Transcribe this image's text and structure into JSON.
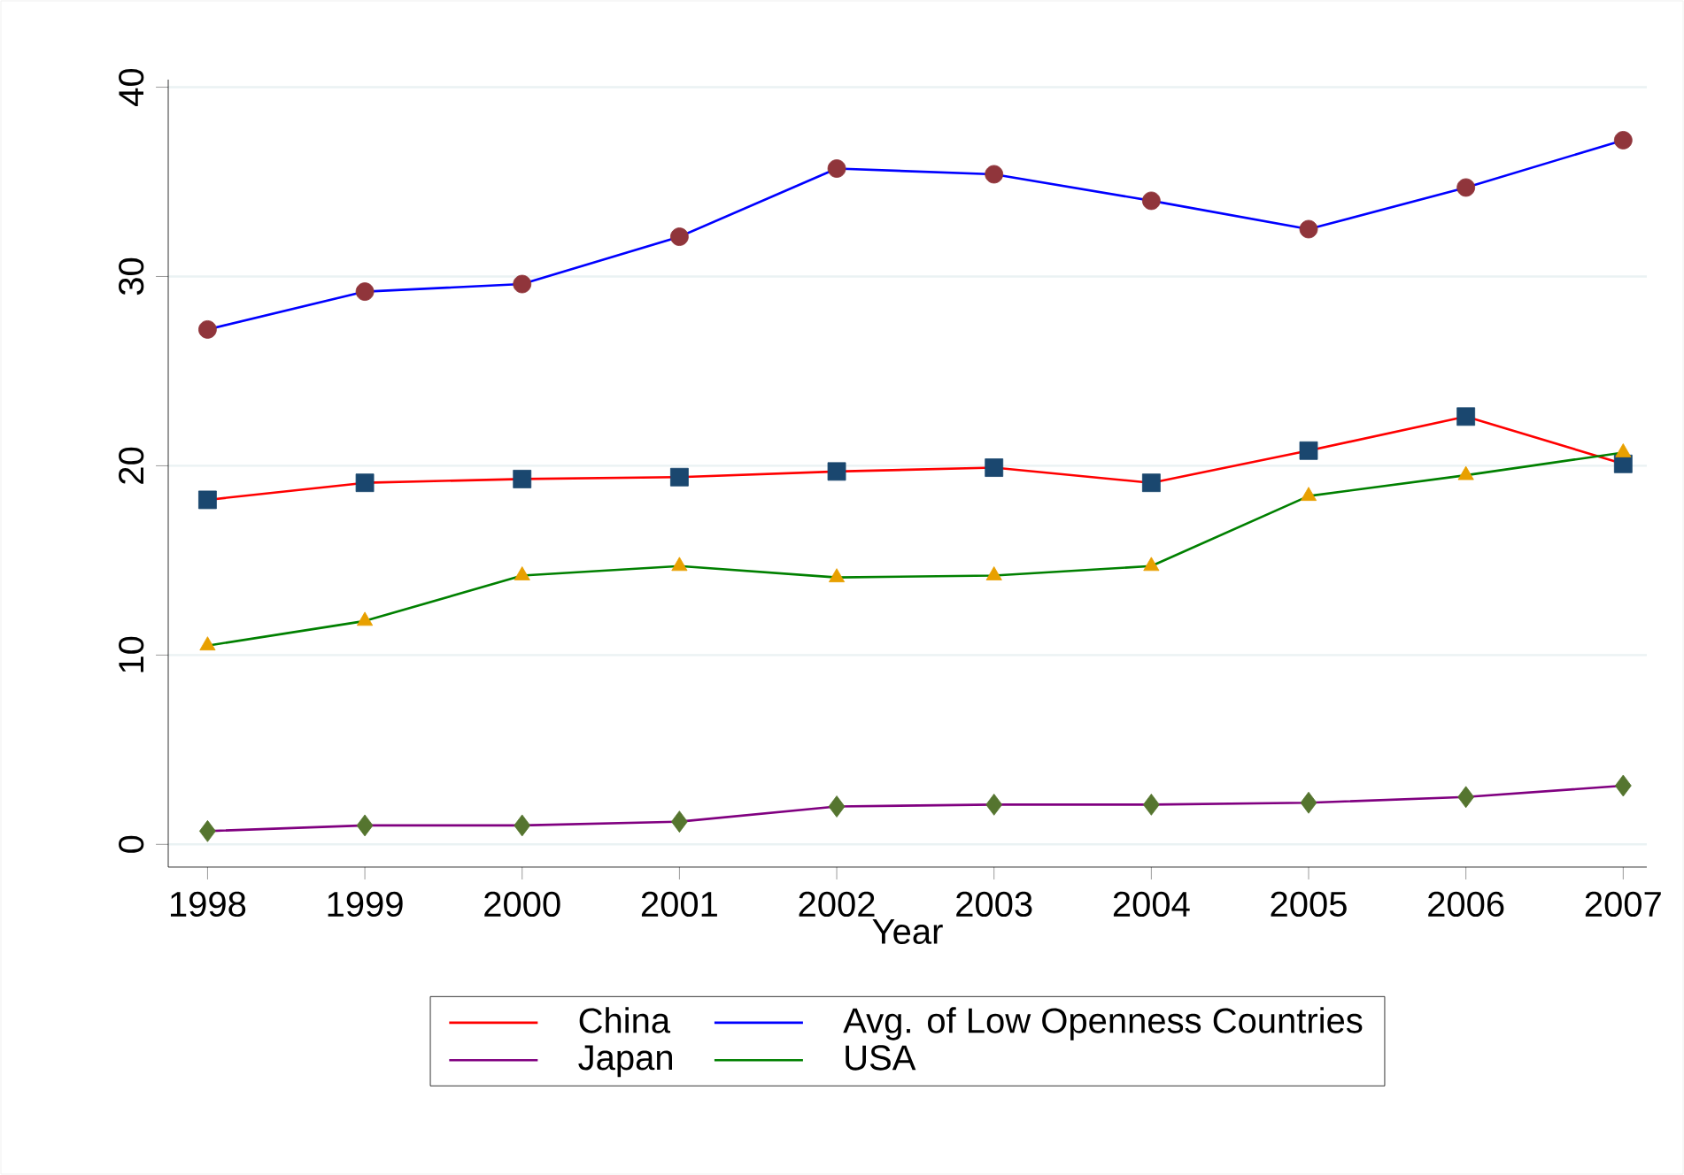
{
  "chart_data": {
    "type": "line",
    "xlabel": "Year",
    "x": [
      1998,
      1999,
      2000,
      2001,
      2002,
      2003,
      2004,
      2005,
      2006,
      2007
    ],
    "series": [
      {
        "name": "China",
        "color": "#ff0000",
        "marker": "square",
        "colors": [
          "#1a476f",
          "#1a476f",
          "#1a476f",
          "#1a476f",
          "#1a476f",
          "#1a476f",
          "#1a476f",
          "#1a476f",
          "#1a476f",
          "#1a476f"
        ],
        "values": [
          18.2,
          19.1,
          19.3,
          19.4,
          19.7,
          19.9,
          19.1,
          20.8,
          22.6,
          20.1
        ]
      },
      {
        "name": "Avg. of Low Openness Countries",
        "color": "#0000ff",
        "marker": "circle",
        "colors": [
          "#90353b",
          "#90353b",
          "#90353b",
          "#90353b",
          "#90353b",
          "#90353b",
          "#90353b",
          "#90353b",
          "#90353b",
          "#90353b"
        ],
        "values": [
          27.2,
          29.2,
          29.6,
          32.1,
          35.7,
          35.4,
          34.0,
          32.5,
          34.7,
          37.2
        ]
      },
      {
        "name": "Japan",
        "color": "#800080",
        "marker": "diamond",
        "colors": [
          "#55752f",
          "#55752f",
          "#55752f",
          "#55752f",
          "#55752f",
          "#55752f",
          "#55752f",
          "#55752f",
          "#55752f",
          "#55752f"
        ],
        "values": [
          0.7,
          1.0,
          1.0,
          1.2,
          2.0,
          2.1,
          2.1,
          2.2,
          2.5,
          3.1
        ]
      },
      {
        "name": "USA",
        "color": "#008000",
        "marker": "triangle",
        "colors": [
          "#e8a000",
          "#e8a000",
          "#e8a000",
          "#e8a000",
          "#e8a000",
          "#e8a000",
          "#e8a000",
          "#e8a000",
          "#e8a000",
          "#e8a000"
        ],
        "values": [
          10.5,
          11.8,
          14.2,
          14.7,
          14.1,
          14.2,
          14.7,
          18.4,
          19.5,
          20.7
        ]
      }
    ],
    "xlim": [
      1997.75,
      2007.15
    ],
    "ylim": [
      -1.2,
      40.4
    ],
    "xticks": [
      1998,
      1999,
      2000,
      2001,
      2002,
      2003,
      2004,
      2005,
      2006,
      2007
    ],
    "yticks": [
      0,
      10,
      20,
      30,
      40
    ],
    "grid": "y",
    "legend": "bottom",
    "line_style": "solid"
  }
}
